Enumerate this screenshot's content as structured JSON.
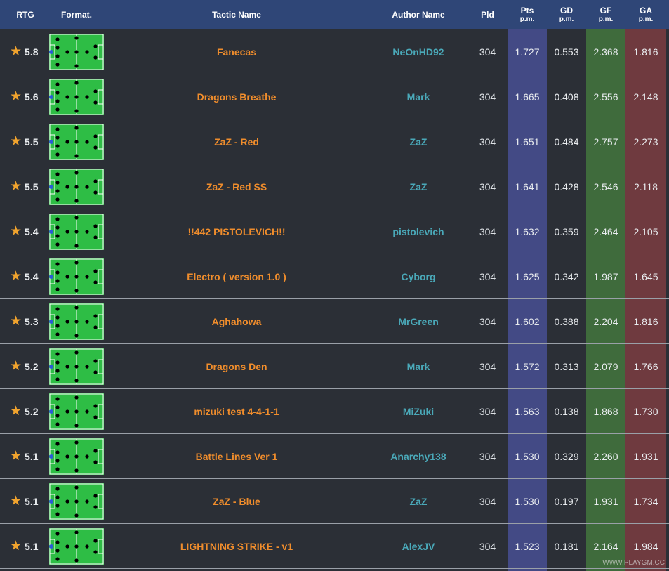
{
  "headers": {
    "rtg": "RTG",
    "format": "Format.",
    "tactic": "Tactic Name",
    "author": "Author Name",
    "pld": "Pld",
    "pts": "Pts",
    "gd": "GD",
    "gf": "GF",
    "ga": "GA",
    "per_match": "p.m."
  },
  "colors": {
    "header_bg": "#2f4677",
    "row_bg": "#2b2f36",
    "pts_bg": "#434a85",
    "gf_bg": "#3f6b3c",
    "ga_bg": "#6f3a3f",
    "tactic_text": "#f08d2c",
    "author_text": "#4aa9b9",
    "star": "#f0a32e",
    "pitch_green": "#2ebd45"
  },
  "icons": {
    "rating": "star-icon",
    "formation": "pitch-formation-icon"
  },
  "rows": [
    {
      "rating": "5.8",
      "tactic": "Fanecas",
      "author": "NeOnHD92",
      "pld": "304",
      "pts": "1.727",
      "gd": "0.553",
      "gf": "2.368",
      "ga": "1.816"
    },
    {
      "rating": "5.6",
      "tactic": "Dragons Breathe",
      "author": "Mark",
      "pld": "304",
      "pts": "1.665",
      "gd": "0.408",
      "gf": "2.556",
      "ga": "2.148"
    },
    {
      "rating": "5.5",
      "tactic": "ZaZ - Red",
      "author": "ZaZ",
      "pld": "304",
      "pts": "1.651",
      "gd": "0.484",
      "gf": "2.757",
      "ga": "2.273"
    },
    {
      "rating": "5.5",
      "tactic": "ZaZ - Red SS",
      "author": "ZaZ",
      "pld": "304",
      "pts": "1.641",
      "gd": "0.428",
      "gf": "2.546",
      "ga": "2.118"
    },
    {
      "rating": "5.4",
      "tactic": "!!442 PISTOLEVICH!!",
      "author": "pistolevich",
      "pld": "304",
      "pts": "1.632",
      "gd": "0.359",
      "gf": "2.464",
      "ga": "2.105"
    },
    {
      "rating": "5.4",
      "tactic": "Electro ( version 1.0 )",
      "author": "Cyborg",
      "pld": "304",
      "pts": "1.625",
      "gd": "0.342",
      "gf": "1.987",
      "ga": "1.645"
    },
    {
      "rating": "5.3",
      "tactic": "Aghahowa",
      "author": "MrGreen",
      "pld": "304",
      "pts": "1.602",
      "gd": "0.388",
      "gf": "2.204",
      "ga": "1.816"
    },
    {
      "rating": "5.2",
      "tactic": "Dragons Den",
      "author": "Mark",
      "pld": "304",
      "pts": "1.572",
      "gd": "0.313",
      "gf": "2.079",
      "ga": "1.766"
    },
    {
      "rating": "5.2",
      "tactic": "mizuki test 4-4-1-1",
      "author": "MiZuki",
      "pld": "304",
      "pts": "1.563",
      "gd": "0.138",
      "gf": "1.868",
      "ga": "1.730"
    },
    {
      "rating": "5.1",
      "tactic": "Battle Lines Ver 1",
      "author": "Anarchy138",
      "pld": "304",
      "pts": "1.530",
      "gd": "0.329",
      "gf": "2.260",
      "ga": "1.931"
    },
    {
      "rating": "5.1",
      "tactic": "ZaZ - Blue",
      "author": "ZaZ",
      "pld": "304",
      "pts": "1.530",
      "gd": "0.197",
      "gf": "1.931",
      "ga": "1.734"
    },
    {
      "rating": "5.1",
      "tactic": "LIGHTNING STRIKE - v1",
      "author": "AlexJV",
      "pld": "304",
      "pts": "1.523",
      "gd": "0.181",
      "gf": "2.164",
      "ga": "1.984"
    }
  ],
  "watermark": "WWW.PLAYGM.CC"
}
